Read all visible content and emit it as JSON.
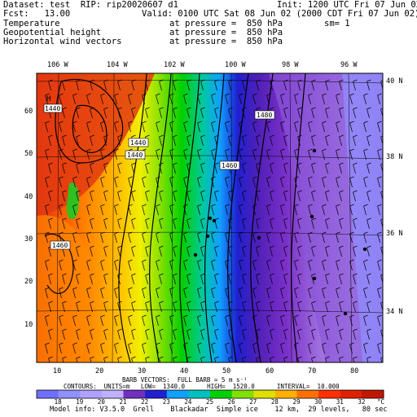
{
  "header": {
    "dataset_line": "Dataset: test  RIP: rip20020607 d1",
    "init_line": "Init: 1200 UTC Fri 07 Jun 02",
    "fcst_line": "Fcst:   13.00",
    "valid_line": "Valid: 0100 UTC Sat 08 Jun 02 (2000 CDT Fri 07 Jun 02)",
    "fields": [
      {
        "name": "Temperature",
        "level": "at pressure =  850 hPa",
        "extra": ""
      },
      {
        "name": "Geopotential height",
        "level": "at pressure =  850 hPa",
        "extra": "sm= 1"
      },
      {
        "name": "Horizontal wind vectors",
        "level": "at pressure =  850 hPa",
        "extra": ""
      }
    ]
  },
  "map": {
    "lon_labels": [
      "106 W",
      "104 W",
      "102 W",
      "100 W",
      "98 W",
      "96 W"
    ],
    "lat_labels_right": [
      "40 N",
      "38 N",
      "36 N",
      "34 N"
    ],
    "y_ticks": [
      "60",
      "50",
      "40",
      "30",
      "20",
      "10"
    ],
    "x_ticks": [
      "10",
      "20",
      "30",
      "40",
      "50",
      "60",
      "70",
      "80"
    ],
    "contour_labels": [
      "1440",
      "1440",
      "1440",
      "1460",
      "1460",
      "1480",
      "1460"
    ],
    "high_marker": "H"
  },
  "footer": {
    "barb_line": "BARB VECTORS:  FULL BARB = 5 m s⁻¹",
    "contour_line": "CONTOURS:  UNITS=m   LOW=  1340.0      HIGH=  1520.0      INTERVAL=  10.000",
    "model_info": "Model info: V3.5.0  Grell    Blackadar  Simple ice    12 km,  29 levels,   80 sec"
  },
  "colorbar": {
    "labels": [
      "18",
      "19",
      "20",
      "21",
      "22",
      "23",
      "24",
      "25",
      "26",
      "27",
      "28",
      "29",
      "30",
      "31",
      "32"
    ],
    "unit": "°C",
    "colors": [
      "#7070ff",
      "#9090ff",
      "#b0a0ff",
      "#c0b0ff",
      "#7030c0",
      "#2020d0",
      "#10a0ff",
      "#00c0c0",
      "#00d000",
      "#80e000",
      "#e0e000",
      "#ffb000",
      "#ff7000",
      "#ff3000",
      "#e02000",
      "#c01800"
    ]
  }
}
